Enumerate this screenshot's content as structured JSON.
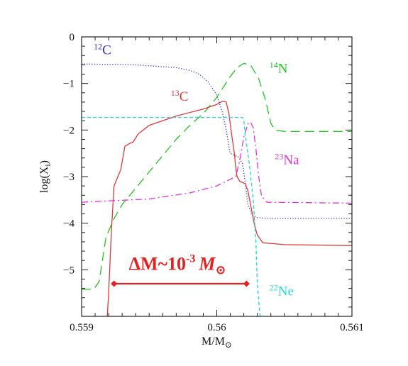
{
  "chart_data": {
    "type": "line",
    "title": "",
    "xlabel": "M/M",
    "xlabel_sub": "⊙",
    "ylabel": "log(X",
    "ylabel_sub": "i",
    "ylabel_close": ")",
    "xlim": [
      0.559,
      0.561
    ],
    "ylim": [
      -6,
      0
    ],
    "x_ticks": [
      {
        "value": 0.559,
        "label": "0.559"
      },
      {
        "value": 0.56,
        "label": "0.56"
      },
      {
        "value": 0.561,
        "label": "0.561"
      }
    ],
    "y_ticks": [
      {
        "value": 0,
        "label": "0"
      },
      {
        "value": -1,
        "label": "−1"
      },
      {
        "value": -2,
        "label": "−2"
      },
      {
        "value": -3,
        "label": "−3"
      },
      {
        "value": -4,
        "label": "−4"
      },
      {
        "value": -5,
        "label": "−5"
      }
    ],
    "grid": false,
    "series": [
      {
        "name": "C",
        "isotope": "12",
        "color": "#3030c8",
        "dash": "1.2,2.4",
        "label_x": 0.55909,
        "label_y": -0.37,
        "points": [
          [
            0.559,
            -0.58
          ],
          [
            0.5594,
            -0.6
          ],
          [
            0.5597,
            -0.66
          ],
          [
            0.5598,
            -0.72
          ],
          [
            0.55987,
            -0.8
          ],
          [
            0.55994,
            -0.98
          ],
          [
            0.56,
            -1.25
          ],
          [
            0.56004,
            -1.6
          ],
          [
            0.56007,
            -2.0
          ],
          [
            0.56009,
            -2.35
          ],
          [
            0.5601,
            -2.5
          ],
          [
            0.56012,
            -2.53
          ],
          [
            0.56016,
            -2.58
          ],
          [
            0.56019,
            -2.72
          ],
          [
            0.56021,
            -3.1
          ],
          [
            0.56023,
            -3.6
          ],
          [
            0.56026,
            -3.82
          ],
          [
            0.5603,
            -3.88
          ],
          [
            0.5604,
            -3.9
          ],
          [
            0.5606,
            -3.9
          ],
          [
            0.561,
            -3.9
          ]
        ]
      },
      {
        "name": "N",
        "isotope": "14",
        "color": "#22c422",
        "dash": "13,7",
        "label_x": 0.56039,
        "label_y": -0.77,
        "points": [
          [
            0.559,
            -5.42
          ],
          [
            0.55909,
            -5.42
          ],
          [
            0.55913,
            -5.25
          ],
          [
            0.55918,
            -4.3
          ],
          [
            0.55924,
            -3.9
          ],
          [
            0.5593,
            -3.6
          ],
          [
            0.5594,
            -3.25
          ],
          [
            0.5595,
            -2.9
          ],
          [
            0.5596,
            -2.55
          ],
          [
            0.5597,
            -2.2
          ],
          [
            0.5598,
            -1.9
          ],
          [
            0.5599,
            -1.65
          ],
          [
            0.56,
            -1.3
          ],
          [
            0.5601,
            -0.85
          ],
          [
            0.56015,
            -0.66
          ],
          [
            0.5602,
            -0.57
          ],
          [
            0.56025,
            -0.6
          ],
          [
            0.56031,
            -0.9
          ],
          [
            0.56036,
            -1.35
          ],
          [
            0.5604,
            -1.85
          ],
          [
            0.56043,
            -2.0
          ],
          [
            0.5605,
            -2.03
          ],
          [
            0.561,
            -2.03
          ]
        ]
      },
      {
        "name": "C",
        "isotope": "13",
        "color": "#e03838",
        "dash": "",
        "label_x": 0.55966,
        "label_y": -1.37,
        "points": [
          [
            0.55919,
            -6.0
          ],
          [
            0.5592,
            -5.5
          ],
          [
            0.55922,
            -4.2
          ],
          [
            0.55924,
            -3.2
          ],
          [
            0.55929,
            -2.85
          ],
          [
            0.55932,
            -2.35
          ],
          [
            0.55936,
            -2.28
          ],
          [
            0.55938,
            -2.26
          ],
          [
            0.55942,
            -2.08
          ],
          [
            0.5595,
            -1.9
          ],
          [
            0.5597,
            -1.7
          ],
          [
            0.5599,
            -1.55
          ],
          [
            0.56,
            -1.45
          ],
          [
            0.56003,
            -1.4
          ],
          [
            0.56005,
            -1.38
          ],
          [
            0.56007,
            -1.4
          ],
          [
            0.56009,
            -1.65
          ],
          [
            0.56011,
            -2.1
          ],
          [
            0.56013,
            -2.5
          ],
          [
            0.56014,
            -2.8
          ],
          [
            0.56015,
            -3.0
          ],
          [
            0.56017,
            -3.1
          ],
          [
            0.56021,
            -3.15
          ],
          [
            0.56023,
            -3.3
          ],
          [
            0.56025,
            -3.6
          ],
          [
            0.56028,
            -4.05
          ],
          [
            0.5603,
            -4.25
          ],
          [
            0.56034,
            -4.42
          ],
          [
            0.5605,
            -4.46
          ],
          [
            0.561,
            -4.48
          ]
        ]
      },
      {
        "name": "Na",
        "isotope": "23",
        "color": "#e032e0",
        "dash": "9,4,2,4",
        "label_x": 0.56043,
        "label_y": -2.73,
        "points": [
          [
            0.559,
            -3.55
          ],
          [
            0.5595,
            -3.48
          ],
          [
            0.5598,
            -3.35
          ],
          [
            0.56,
            -3.2
          ],
          [
            0.56014,
            -3.0
          ],
          [
            0.56017,
            -2.65
          ],
          [
            0.5602,
            -2.15
          ],
          [
            0.56023,
            -1.87
          ],
          [
            0.56025,
            -1.83
          ],
          [
            0.56027,
            -1.95
          ],
          [
            0.56029,
            -2.4
          ],
          [
            0.56031,
            -3.0
          ],
          [
            0.56033,
            -3.4
          ],
          [
            0.56037,
            -3.55
          ],
          [
            0.561,
            -3.57
          ]
        ]
      },
      {
        "name": "Ne",
        "isotope": "22",
        "color": "#22d8d8",
        "dash": "5,3",
        "label_x": 0.56039,
        "label_y": -5.55,
        "points": [
          [
            0.559,
            -1.73
          ],
          [
            0.56019,
            -1.73
          ],
          [
            0.5602,
            -1.78
          ],
          [
            0.56021,
            -2.1
          ],
          [
            0.56024,
            -2.7
          ],
          [
            0.56027,
            -3.5
          ],
          [
            0.56029,
            -4.4
          ],
          [
            0.5603,
            -5.3
          ],
          [
            0.56032,
            -6.0
          ]
        ]
      }
    ],
    "annotation": {
      "text": "ΔM~10",
      "sup": "-3",
      "m": "M",
      "sun": "⊙",
      "color": "#e62020",
      "x_start": 0.55924,
      "x_end": 0.56022,
      "y": -5.3,
      "label_x": 0.55935,
      "label_y": -5.0
    }
  }
}
